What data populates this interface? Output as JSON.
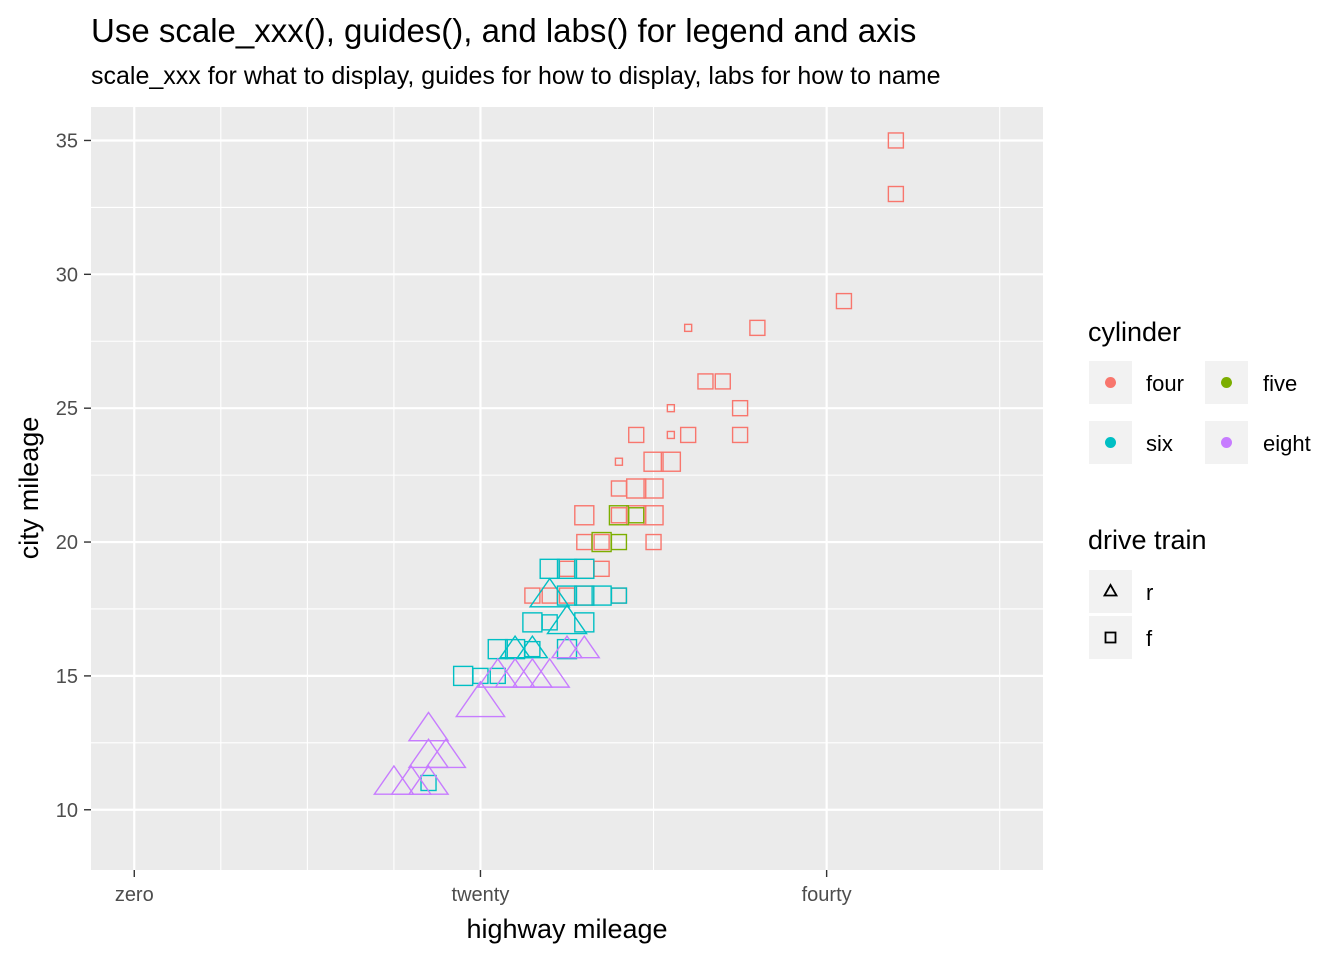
{
  "chart_data": {
    "type": "scatter",
    "title": "Use scale_xxx(), guides(), and labs() for legend and axis",
    "subtitle": "scale_xxx for what to display, guides for how to display, labs for how to name",
    "xlabel": "highway mileage",
    "ylabel": "city mileage",
    "xlim": [
      -2.5,
      52.5
    ],
    "ylim": [
      7.75,
      36.25
    ],
    "x_ticks": [
      {
        "value": 0,
        "label": "zero"
      },
      {
        "value": 20,
        "label": "twenty"
      },
      {
        "value": 40,
        "label": "fourty"
      }
    ],
    "x_minor_ticks": [
      5,
      10,
      15,
      30,
      50
    ],
    "y_ticks": [
      {
        "value": 10,
        "label": "10"
      },
      {
        "value": 15,
        "label": "15"
      },
      {
        "value": 20,
        "label": "20"
      },
      {
        "value": 25,
        "label": "25"
      },
      {
        "value": 30,
        "label": "30"
      },
      {
        "value": 35,
        "label": "35"
      }
    ],
    "y_minor_ticks": [
      12.5,
      17.5,
      22.5,
      27.5,
      32.5
    ],
    "grid": true,
    "colors": {
      "four": "#F8766D",
      "five": "#7CAE00",
      "six": "#00BFC4",
      "eight": "#C77CFF",
      "panel": "#EBEBEB",
      "grid": "#FFFFFF"
    },
    "legends": [
      {
        "title": "cylinder",
        "placement": "right",
        "entries": [
          {
            "key": "four",
            "label": "four",
            "color": "#F8766D"
          },
          {
            "key": "five",
            "label": "five",
            "color": "#7CAE00"
          },
          {
            "key": "six",
            "label": "six",
            "color": "#00BFC4"
          },
          {
            "key": "eight",
            "label": "eight",
            "color": "#C77CFF"
          }
        ]
      },
      {
        "title": "drive train",
        "placement": "right",
        "entries": [
          {
            "label": "r",
            "shape": "triangle"
          },
          {
            "label": "f",
            "shape": "square"
          }
        ]
      }
    ],
    "points": [
      {
        "x": 44,
        "y": 35,
        "cyl": "four",
        "drv": "f",
        "size": 1
      },
      {
        "x": 44,
        "y": 33,
        "cyl": "four",
        "drv": "f",
        "size": 1
      },
      {
        "x": 41,
        "y": 29,
        "cyl": "four",
        "drv": "f",
        "size": 1
      },
      {
        "x": 36,
        "y": 28,
        "cyl": "four",
        "drv": "f",
        "size": 1
      },
      {
        "x": 32,
        "y": 28,
        "cyl": "four",
        "drv": "f",
        "size": 0
      },
      {
        "x": 33,
        "y": 26,
        "cyl": "four",
        "drv": "f",
        "size": 1
      },
      {
        "x": 34,
        "y": 26,
        "cyl": "four",
        "drv": "f",
        "size": 1
      },
      {
        "x": 35,
        "y": 25,
        "cyl": "four",
        "drv": "f",
        "size": 1
      },
      {
        "x": 31,
        "y": 25,
        "cyl": "four",
        "drv": "f",
        "size": 0
      },
      {
        "x": 29,
        "y": 24,
        "cyl": "four",
        "drv": "f",
        "size": 1
      },
      {
        "x": 32,
        "y": 24,
        "cyl": "four",
        "drv": "f",
        "size": 1
      },
      {
        "x": 35,
        "y": 24,
        "cyl": "four",
        "drv": "f",
        "size": 1
      },
      {
        "x": 31,
        "y": 24,
        "cyl": "four",
        "drv": "f",
        "size": 0
      },
      {
        "x": 28,
        "y": 23,
        "cyl": "four",
        "drv": "f",
        "size": 0
      },
      {
        "x": 30,
        "y": 23,
        "cyl": "four",
        "drv": "f",
        "size": 2
      },
      {
        "x": 31,
        "y": 23,
        "cyl": "four",
        "drv": "f",
        "size": 2
      },
      {
        "x": 28,
        "y": 22,
        "cyl": "four",
        "drv": "f",
        "size": 1
      },
      {
        "x": 29,
        "y": 22,
        "cyl": "four",
        "drv": "f",
        "size": 2
      },
      {
        "x": 30,
        "y": 22,
        "cyl": "four",
        "drv": "f",
        "size": 2
      },
      {
        "x": 26,
        "y": 21,
        "cyl": "four",
        "drv": "f",
        "size": 2
      },
      {
        "x": 28,
        "y": 21,
        "cyl": "four",
        "drv": "f",
        "size": 1
      },
      {
        "x": 29,
        "y": 21,
        "cyl": "four",
        "drv": "f",
        "size": 2
      },
      {
        "x": 30,
        "y": 21,
        "cyl": "four",
        "drv": "f",
        "size": 2
      },
      {
        "x": 26,
        "y": 20,
        "cyl": "four",
        "drv": "f",
        "size": 1
      },
      {
        "x": 27,
        "y": 20,
        "cyl": "four",
        "drv": "f",
        "size": 1
      },
      {
        "x": 30,
        "y": 20,
        "cyl": "four",
        "drv": "f",
        "size": 1
      },
      {
        "x": 25,
        "y": 19,
        "cyl": "four",
        "drv": "f",
        "size": 1
      },
      {
        "x": 26,
        "y": 19,
        "cyl": "four",
        "drv": "f",
        "size": 2
      },
      {
        "x": 27,
        "y": 19,
        "cyl": "four",
        "drv": "f",
        "size": 1
      },
      {
        "x": 23,
        "y": 18,
        "cyl": "four",
        "drv": "f",
        "size": 1
      },
      {
        "x": 24,
        "y": 18,
        "cyl": "four",
        "drv": "f",
        "size": 1
      },
      {
        "x": 25,
        "y": 18,
        "cyl": "four",
        "drv": "f",
        "size": 1
      },
      {
        "x": 28,
        "y": 18,
        "cyl": "four",
        "drv": "f",
        "size": 1
      },
      {
        "x": 26,
        "y": 18,
        "cyl": "four",
        "drv": "f",
        "size": 2
      },
      {
        "x": 28,
        "y": 21,
        "cyl": "five",
        "drv": "f",
        "size": 2
      },
      {
        "x": 29,
        "y": 21,
        "cyl": "five",
        "drv": "f",
        "size": 1
      },
      {
        "x": 27,
        "y": 20,
        "cyl": "five",
        "drv": "f",
        "size": 2
      },
      {
        "x": 28,
        "y": 20,
        "cyl": "five",
        "drv": "f",
        "size": 1
      },
      {
        "x": 24,
        "y": 19,
        "cyl": "six",
        "drv": "f",
        "size": 2
      },
      {
        "x": 25,
        "y": 19,
        "cyl": "six",
        "drv": "f",
        "size": 2
      },
      {
        "x": 26,
        "y": 19,
        "cyl": "six",
        "drv": "f",
        "size": 2
      },
      {
        "x": 25,
        "y": 18,
        "cyl": "six",
        "drv": "f",
        "size": 2
      },
      {
        "x": 26,
        "y": 18,
        "cyl": "six",
        "drv": "f",
        "size": 2
      },
      {
        "x": 27,
        "y": 18,
        "cyl": "six",
        "drv": "f",
        "size": 2
      },
      {
        "x": 28,
        "y": 18,
        "cyl": "six",
        "drv": "f",
        "size": 1
      },
      {
        "x": 24,
        "y": 17,
        "cyl": "six",
        "drv": "f",
        "size": 1
      },
      {
        "x": 26,
        "y": 17,
        "cyl": "six",
        "drv": "f",
        "size": 2
      },
      {
        "x": 23,
        "y": 17,
        "cyl": "six",
        "drv": "f",
        "size": 2
      },
      {
        "x": 21,
        "y": 16,
        "cyl": "six",
        "drv": "f",
        "size": 2
      },
      {
        "x": 22,
        "y": 16,
        "cyl": "six",
        "drv": "f",
        "size": 2
      },
      {
        "x": 23,
        "y": 16,
        "cyl": "six",
        "drv": "f",
        "size": 1
      },
      {
        "x": 25,
        "y": 16,
        "cyl": "six",
        "drv": "f",
        "size": 2
      },
      {
        "x": 19,
        "y": 15,
        "cyl": "six",
        "drv": "f",
        "size": 2
      },
      {
        "x": 20,
        "y": 15,
        "cyl": "six",
        "drv": "f",
        "size": 1
      },
      {
        "x": 21,
        "y": 15,
        "cyl": "six",
        "drv": "f",
        "size": 1
      },
      {
        "x": 17,
        "y": 11,
        "cyl": "six",
        "drv": "f",
        "size": 1
      },
      {
        "x": 24,
        "y": 18,
        "cyl": "six",
        "drv": "r",
        "size": 2
      },
      {
        "x": 25,
        "y": 17,
        "cyl": "six",
        "drv": "r",
        "size": 2
      },
      {
        "x": 22,
        "y": 16,
        "cyl": "six",
        "drv": "r",
        "size": 1
      },
      {
        "x": 23,
        "y": 16,
        "cyl": "six",
        "drv": "r",
        "size": 1
      },
      {
        "x": 25,
        "y": 16,
        "cyl": "eight",
        "drv": "r",
        "size": 1
      },
      {
        "x": 26,
        "y": 16,
        "cyl": "eight",
        "drv": "r",
        "size": 1
      },
      {
        "x": 23,
        "y": 15,
        "cyl": "eight",
        "drv": "r",
        "size": 2
      },
      {
        "x": 24,
        "y": 15,
        "cyl": "eight",
        "drv": "r",
        "size": 2
      },
      {
        "x": 22,
        "y": 15,
        "cyl": "eight",
        "drv": "r",
        "size": 2
      },
      {
        "x": 21,
        "y": 15,
        "cyl": "eight",
        "drv": "r",
        "size": 2
      },
      {
        "x": 20,
        "y": 14,
        "cyl": "eight",
        "drv": "r",
        "size": 3
      },
      {
        "x": 17,
        "y": 13,
        "cyl": "eight",
        "drv": "r",
        "size": 2
      },
      {
        "x": 17,
        "y": 12,
        "cyl": "eight",
        "drv": "r",
        "size": 2
      },
      {
        "x": 18,
        "y": 12,
        "cyl": "eight",
        "drv": "r",
        "size": 2
      },
      {
        "x": 15,
        "y": 11,
        "cyl": "eight",
        "drv": "r",
        "size": 2
      },
      {
        "x": 16,
        "y": 11,
        "cyl": "eight",
        "drv": "r",
        "size": 2
      },
      {
        "x": 17,
        "y": 11,
        "cyl": "eight",
        "drv": "r",
        "size": 2
      }
    ]
  }
}
